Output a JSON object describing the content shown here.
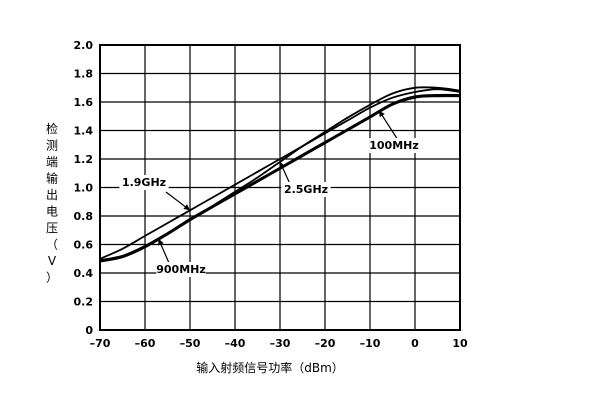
{
  "chart_data": {
    "type": "line",
    "title": "",
    "xlabel": "输入射频信号功率（dBm）",
    "ylabel": "检测端输出电压（V）",
    "xlim": [
      -70,
      10
    ],
    "ylim": [
      0,
      2.0
    ],
    "x_ticks": [
      -70,
      -60,
      -50,
      -40,
      -30,
      -20,
      -10,
      0,
      10
    ],
    "y_ticks": [
      0,
      0.2,
      0.4,
      0.6,
      0.8,
      1.0,
      1.2,
      1.4,
      1.6,
      1.8,
      2.0
    ],
    "x_tick_labels": [
      "–70",
      "–60",
      "–50",
      "–40",
      "–30",
      "–20",
      "–10",
      "0",
      "10"
    ],
    "y_tick_labels": [
      "0",
      "0.2",
      "0.4",
      "0.6",
      "0.8",
      "1.0",
      "1.2",
      "1.4",
      "1.6",
      "1.8",
      "2.0"
    ],
    "grid": true,
    "series": [
      {
        "name": "1.9GHz",
        "x": [
          -70,
          -65,
          -60,
          -55,
          -50,
          -45,
          -40,
          -35,
          -30,
          -25,
          -20,
          -15,
          -10,
          -5,
          0,
          5,
          10
        ],
        "y": [
          0.5,
          0.57,
          0.66,
          0.75,
          0.84,
          0.93,
          1.02,
          1.11,
          1.2,
          1.29,
          1.38,
          1.47,
          1.56,
          1.63,
          1.67,
          1.69,
          1.67
        ]
      },
      {
        "name": "2.5GHz",
        "x": [
          -70,
          -65,
          -60,
          -55,
          -50,
          -45,
          -40,
          -35,
          -30,
          -25,
          -20,
          -15,
          -10,
          -5,
          0,
          5,
          10
        ],
        "y": [
          0.48,
          0.51,
          0.58,
          0.67,
          0.77,
          0.87,
          0.97,
          1.07,
          1.18,
          1.29,
          1.39,
          1.49,
          1.58,
          1.66,
          1.7,
          1.7,
          1.68
        ]
      },
      {
        "name": "900MHz",
        "x": [
          -70,
          -65,
          -60,
          -55,
          -50,
          -45,
          -40,
          -35,
          -30,
          -25,
          -20,
          -15,
          -10,
          -5,
          0,
          5,
          10
        ],
        "y": [
          0.49,
          0.52,
          0.59,
          0.68,
          0.78,
          0.87,
          0.96,
          1.05,
          1.14,
          1.23,
          1.32,
          1.41,
          1.5,
          1.59,
          1.64,
          1.65,
          1.65
        ]
      },
      {
        "name": "100MHz",
        "x": [
          -70,
          -65,
          -60,
          -55,
          -50,
          -45,
          -40,
          -35,
          -30,
          -25,
          -20,
          -15,
          -10,
          -5,
          0,
          5,
          10
        ],
        "y": [
          0.49,
          0.52,
          0.59,
          0.68,
          0.77,
          0.86,
          0.95,
          1.04,
          1.13,
          1.22,
          1.31,
          1.4,
          1.49,
          1.58,
          1.63,
          1.64,
          1.64
        ]
      }
    ],
    "annotations": [
      {
        "text": "1.9GHz",
        "series": "1.9GHz",
        "point": [
          -50,
          0.84
        ]
      },
      {
        "text": "2.5GHz",
        "series": "2.5GHz",
        "point": [
          -30,
          1.18
        ]
      },
      {
        "text": "900MHz",
        "series": "900MHz",
        "point": [
          -57,
          0.64
        ]
      },
      {
        "text": "100MHz",
        "series": "100MHz",
        "point": [
          -8,
          1.54
        ]
      }
    ]
  }
}
